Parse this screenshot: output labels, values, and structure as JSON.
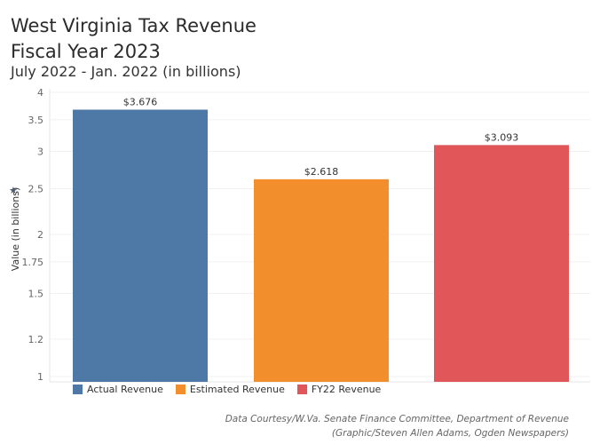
{
  "header": {
    "title_line1": "West Virginia Tax Revenue",
    "title_line2": "Fiscal Year 2023",
    "subtitle": "July 2022 - Jan. 2022 (in billions)"
  },
  "footer": {
    "line1": "Data Courtesy/W.Va. Senate Finance Committee, Department of Revenue",
    "line2": "(Graphic/Steven Allen Adams, Ogden Newspapers)"
  },
  "chart_data": {
    "type": "bar",
    "categories": [
      "Actual Revenue",
      "Estimated Revenue",
      "FY22 Revenue"
    ],
    "values": [
      3.676,
      2.618,
      3.093
    ],
    "data_labels": [
      "$3.676",
      "$2.618",
      "$3.093"
    ],
    "colors": [
      "#4e79a7",
      "#f28e2b",
      "#e15759"
    ],
    "ylabel": "Value (in billions)",
    "yscale": "log",
    "ylim": [
      1,
      4
    ],
    "yticks": [
      1,
      1.2,
      1.5,
      1.75,
      2,
      2.5,
      3,
      3.5,
      4
    ],
    "ytick_labels": [
      "1",
      "1.2",
      "1.5",
      "1.75",
      "2",
      "2.5",
      "3",
      "3.5",
      "4"
    ],
    "grid": true,
    "legend": "bottom-left"
  }
}
